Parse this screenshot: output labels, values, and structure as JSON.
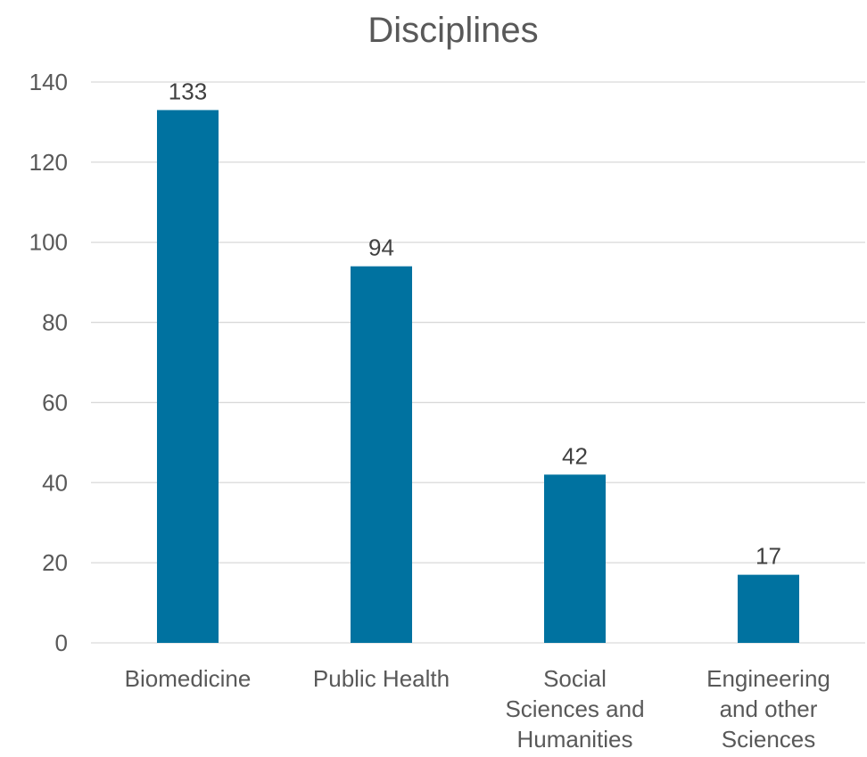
{
  "chart_data": {
    "type": "bar",
    "title": "Disciplines",
    "xlabel": "",
    "ylabel": "",
    "categories": [
      [
        "Biomedicine"
      ],
      [
        "Public Health"
      ],
      [
        "Social",
        "Sciences and",
        "Humanities"
      ],
      [
        "Engineering",
        "and other",
        "Sciences"
      ]
    ],
    "values": [
      133,
      94,
      42,
      17
    ],
    "ylim": [
      0,
      140
    ],
    "yticks": [
      0,
      20,
      40,
      60,
      80,
      100,
      120,
      140
    ],
    "grid": true,
    "legend": "none",
    "bar_color": "#0072A0"
  }
}
